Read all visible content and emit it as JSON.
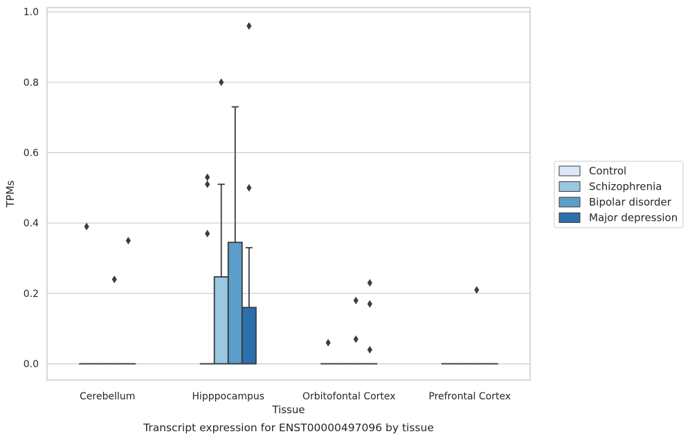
{
  "chart_data": {
    "type": "boxplot",
    "title": "",
    "caption": "Transcript expression for ENST00000497096 by tissue",
    "xlabel": "Tissue",
    "ylabel": "TPMs",
    "ylim": [
      -0.046,
      1.012
    ],
    "yticks": [
      0.0,
      0.2,
      0.4,
      0.6,
      0.8,
      1.0
    ],
    "ytick_labels": [
      "0.0",
      "0.2",
      "0.4",
      "0.6",
      "0.8",
      "1.0"
    ],
    "grid": true,
    "legend_position": "right",
    "categories": [
      "Cerebellum",
      "Hipppocampus",
      "Orbitofontal Cortex",
      "Prefrontal Cortex"
    ],
    "series": [
      {
        "name": "Control",
        "color": "#dbe9f6",
        "boxes": [
          {
            "q1": 0.0,
            "median": 0.0,
            "q3": 0.0,
            "whisker_low": 0.0,
            "whisker_high": 0.0,
            "outliers": [
              0.39
            ]
          },
          {
            "q1": 0.0,
            "median": 0.0,
            "q3": 0.0,
            "whisker_low": 0.0,
            "whisker_high": 0.0,
            "outliers": [
              0.37,
              0.51,
              0.53
            ]
          },
          {
            "q1": 0.0,
            "median": 0.0,
            "q3": 0.0,
            "whisker_low": 0.0,
            "whisker_high": 0.0,
            "outliers": [
              0.06
            ]
          },
          {
            "q1": 0.0,
            "median": 0.0,
            "q3": 0.0,
            "whisker_low": 0.0,
            "whisker_high": 0.0,
            "outliers": []
          }
        ]
      },
      {
        "name": "Schizophrenia",
        "color": "#9ac8e0",
        "boxes": [
          {
            "q1": 0.0,
            "median": 0.0,
            "q3": 0.0,
            "whisker_low": 0.0,
            "whisker_high": 0.0,
            "outliers": []
          },
          {
            "q1": 0.0,
            "median": 0.0,
            "q3": 0.247,
            "whisker_low": 0.0,
            "whisker_high": 0.51,
            "outliers": [
              0.8
            ]
          },
          {
            "q1": 0.0,
            "median": 0.0,
            "q3": 0.0,
            "whisker_low": 0.0,
            "whisker_high": 0.0,
            "outliers": []
          },
          {
            "q1": 0.0,
            "median": 0.0,
            "q3": 0.0,
            "whisker_low": 0.0,
            "whisker_high": 0.0,
            "outliers": []
          }
        ]
      },
      {
        "name": "Bipolar disorder",
        "color": "#5a9ec9",
        "boxes": [
          {
            "q1": 0.0,
            "median": 0.0,
            "q3": 0.0,
            "whisker_low": 0.0,
            "whisker_high": 0.0,
            "outliers": [
              0.24
            ]
          },
          {
            "q1": 0.0,
            "median": 0.0,
            "q3": 0.345,
            "whisker_low": 0.0,
            "whisker_high": 0.73,
            "outliers": []
          },
          {
            "q1": 0.0,
            "median": 0.0,
            "q3": 0.0,
            "whisker_low": 0.0,
            "whisker_high": 0.0,
            "outliers": [
              0.07,
              0.18
            ]
          },
          {
            "q1": 0.0,
            "median": 0.0,
            "q3": 0.0,
            "whisker_low": 0.0,
            "whisker_high": 0.0,
            "outliers": [
              0.21
            ]
          }
        ]
      },
      {
        "name": "Major depression",
        "color": "#2d6fad",
        "boxes": [
          {
            "q1": 0.0,
            "median": 0.0,
            "q3": 0.0,
            "whisker_low": 0.0,
            "whisker_high": 0.0,
            "outliers": [
              0.35
            ]
          },
          {
            "q1": 0.0,
            "median": 0.0,
            "q3": 0.16,
            "whisker_low": 0.0,
            "whisker_high": 0.33,
            "outliers": [
              0.5,
              0.96
            ]
          },
          {
            "q1": 0.0,
            "median": 0.0,
            "q3": 0.0,
            "whisker_low": 0.0,
            "whisker_high": 0.0,
            "outliers": [
              0.04,
              0.17,
              0.23
            ]
          },
          {
            "q1": 0.0,
            "median": 0.0,
            "q3": 0.0,
            "whisker_low": 0.0,
            "whisker_high": 0.0,
            "outliers": []
          }
        ]
      }
    ]
  }
}
